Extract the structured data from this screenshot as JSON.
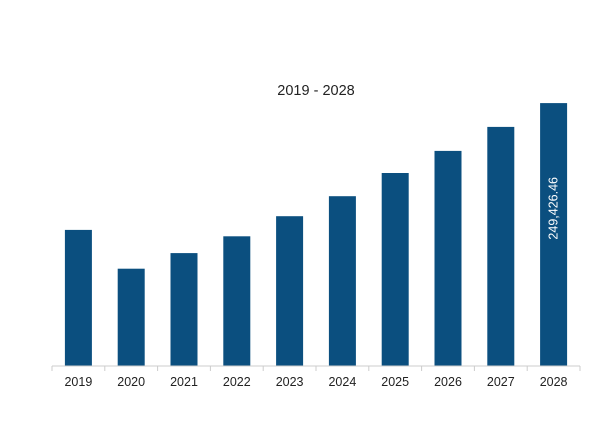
{
  "chart_data": {
    "type": "bar",
    "title": "2019 - 2028",
    "xlabel": "",
    "ylabel": "",
    "categories": [
      "2019",
      "2020",
      "2021",
      "2022",
      "2023",
      "2024",
      "2025",
      "2026",
      "2027",
      "2028"
    ],
    "values": [
      129100,
      92300,
      107100,
      123100,
      142100,
      161100,
      183100,
      204100,
      226900,
      249426.46
    ],
    "ylim": [
      0,
      260000
    ],
    "grid": false,
    "legend": "none",
    "data_labels": [
      {
        "category": "2028",
        "text": "249,426.46"
      }
    ],
    "colors": {
      "bar": "#0b4f7f",
      "axis": "#cccccc",
      "text": "#222222",
      "label": "#ffffff"
    }
  }
}
